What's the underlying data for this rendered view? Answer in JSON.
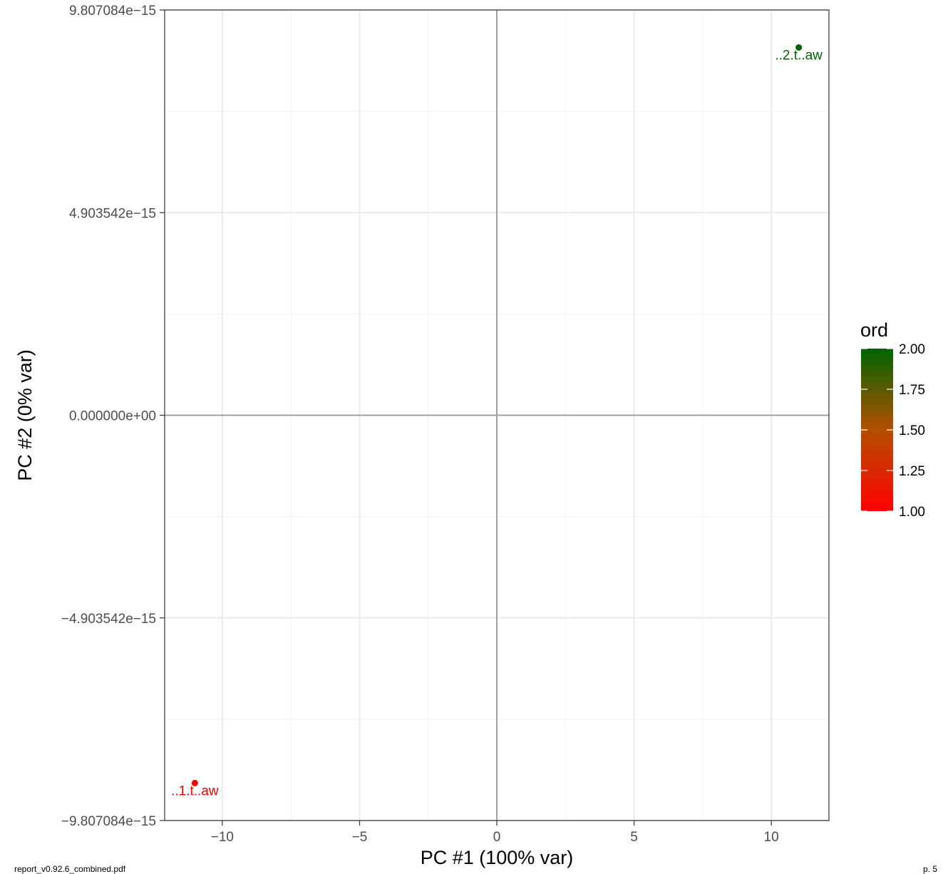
{
  "footer": {
    "left_text": "report_v0.92.6_combined.pdf",
    "right_text": "p. 5"
  },
  "chart_data": {
    "type": "scatter",
    "title": "",
    "xlabel": "PC #1 (100% var)",
    "ylabel": "PC #2 (0% var)",
    "xlim": [
      -12.1,
      12.1
    ],
    "ylim": [
      -9.807084e-15,
      9.807084e-15
    ],
    "x_ticks": [
      {
        "value": -10,
        "label": "−10"
      },
      {
        "value": -5,
        "label": "−5"
      },
      {
        "value": 0,
        "label": "0"
      },
      {
        "value": 5,
        "label": "5"
      },
      {
        "value": 10,
        "label": "10"
      }
    ],
    "y_ticks": [
      {
        "value": 9.807084e-15,
        "label": "9.807084e−15"
      },
      {
        "value": 4.903542e-15,
        "label": "4.903542e−15"
      },
      {
        "value": 0,
        "label": "0.000000e+00"
      },
      {
        "value": -4.903542e-15,
        "label": "−4.903542e−15"
      },
      {
        "value": -9.807084e-15,
        "label": "−9.807084e−15"
      }
    ],
    "grid": true,
    "reference_lines": {
      "x": 0,
      "y": 0
    },
    "points": [
      {
        "x": -11.0,
        "y": -8.9e-15,
        "label": "..1.t..aw",
        "ord": 1.0,
        "color": "#ff0000"
      },
      {
        "x": 11.0,
        "y": 8.9e-15,
        "label": "..2.t..aw",
        "ord": 2.0,
        "color": "#006400"
      }
    ],
    "legend": {
      "title": "ord",
      "position": "right",
      "type": "colorbar",
      "low_color": "#ff0000",
      "high_color": "#006400",
      "min": 1.0,
      "max": 2.0,
      "ticks": [
        {
          "value": 2.0,
          "label": "2.00"
        },
        {
          "value": 1.75,
          "label": "1.75"
        },
        {
          "value": 1.5,
          "label": "1.50"
        },
        {
          "value": 1.25,
          "label": "1.25"
        },
        {
          "value": 1.0,
          "label": "1.00"
        }
      ]
    }
  }
}
